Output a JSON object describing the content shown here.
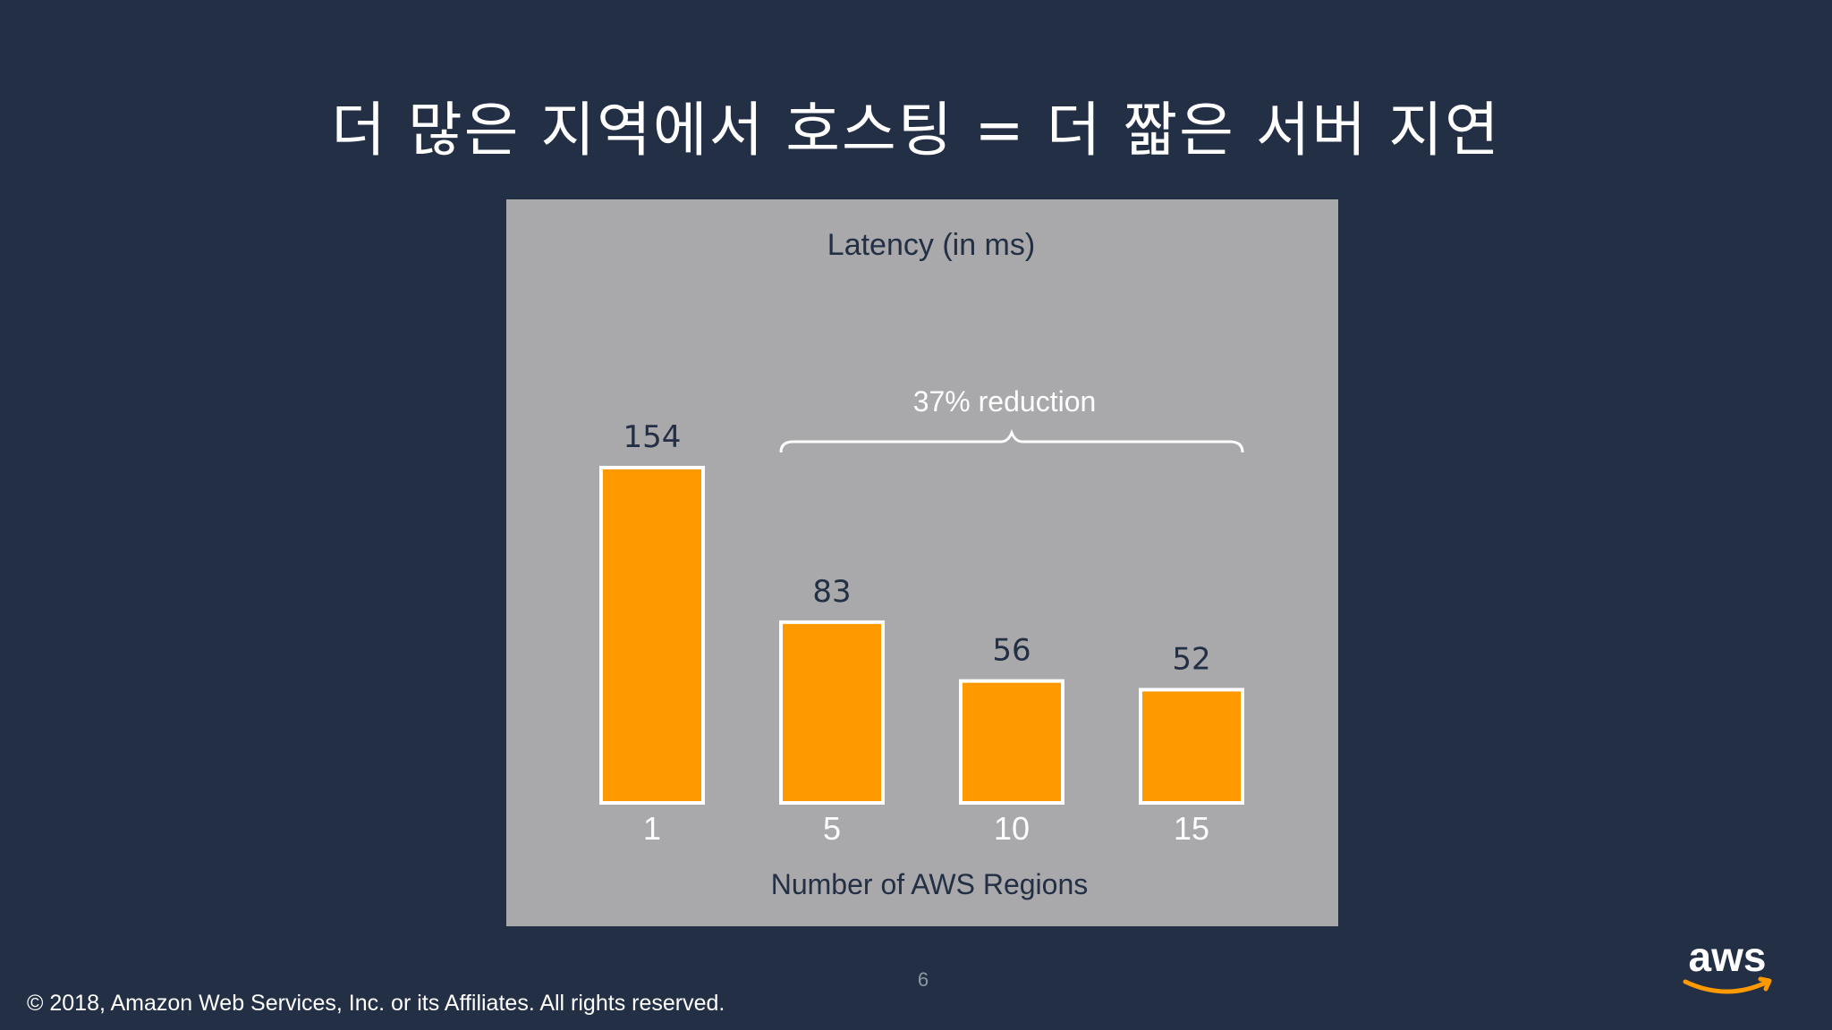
{
  "slide": {
    "title": "더 많은 지역에서 호스팅 = 더 짧은 서버 지연",
    "page_number": "6",
    "copyright": "©  2018, Amazon Web Services, Inc. or its Affiliates. All rights reserved.",
    "logo_text": "aws"
  },
  "colors": {
    "background": "#232f44",
    "panel": "#a9a8aa",
    "bar_fill": "#ff9900",
    "bar_stroke": "#ffffff",
    "annotation": "#ffffff",
    "text_dark": "#232f44"
  },
  "chart_data": {
    "type": "bar",
    "title": "Latency (in ms)",
    "xlabel": "Number of AWS Regions",
    "ylabel": "",
    "categories": [
      "1",
      "5",
      "10",
      "15"
    ],
    "values": [
      154,
      83,
      56,
      52
    ],
    "ylim": [
      0,
      154
    ],
    "grid": false,
    "legend": "none",
    "annotation": {
      "text": "37% reduction",
      "spans_categories": [
        "5",
        "15"
      ]
    }
  }
}
